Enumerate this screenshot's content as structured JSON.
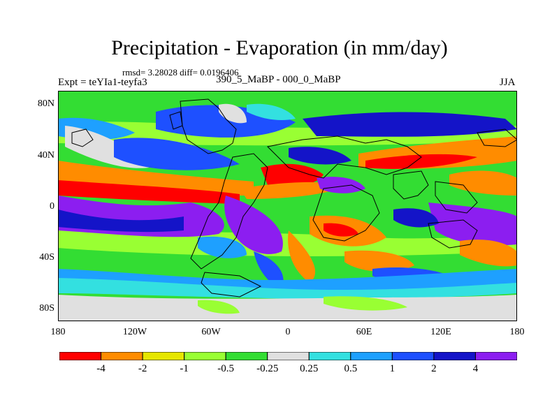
{
  "header": {
    "title": "Precipitation - Evaporation (in mm/day)",
    "stats": "rmsd= 3.28028 diff= 0.0196406",
    "experiment": "Expt = teYIa1-teyfa3",
    "period": "390_5_MaBP - 000_0_MaBP",
    "season": "JJA"
  },
  "axes": {
    "y_labels": [
      "80N",
      "40N",
      "0",
      "40S",
      "80S"
    ],
    "x_labels": [
      "180",
      "120W",
      "60W",
      "0",
      "60E",
      "120E",
      "180"
    ]
  },
  "colorbar": {
    "colors": [
      "#ff0000",
      "#ff8c00",
      "#e6e600",
      "#99ff33",
      "#33dd33",
      "#e0e0e0",
      "#33e0e0",
      "#1ea0ff",
      "#1e50ff",
      "#1414c8",
      "#8c1ef0"
    ],
    "labels": [
      "-4",
      "-2",
      "-1",
      "-0.5",
      "-0.25",
      "0.25",
      "0.5",
      "1",
      "2",
      "4"
    ]
  },
  "map": {
    "projection": "cylindrical-equidistant",
    "lon_range": [
      -180,
      180
    ],
    "lat_range": [
      -90,
      90
    ],
    "background_color": "#33dd33"
  }
}
